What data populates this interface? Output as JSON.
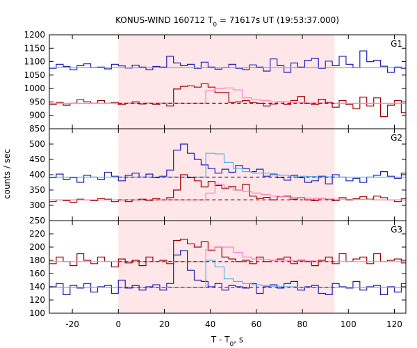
{
  "chart_data": {
    "type": "line",
    "title": {
      "main": "KONUS-WIND 160712 T",
      "sub": "0",
      "rest": " = 71617s UT (19:53:37.000)"
    },
    "xlabel": {
      "main": "T - T",
      "sub": "0",
      "rest": ", s"
    },
    "ylabel": "counts / sec",
    "xlim": [
      -30,
      125
    ],
    "xticks": [
      -20,
      0,
      20,
      40,
      60,
      80,
      100,
      120
    ],
    "shade_interval": [
      0,
      94
    ],
    "colors": {
      "blue": "#1f1fb4",
      "dark_red": "#a00000",
      "light_blue": "#5ab4e6",
      "pink": "#ff80c0",
      "shade": "#ffe6e8"
    },
    "panels": [
      {
        "label": "G1",
        "ylim": [
          850,
          1200
        ],
        "yticks": [
          850,
          900,
          950,
          1000,
          1050,
          1100,
          1150,
          1200
        ],
        "series": [
          {
            "color": "blue",
            "style": "step",
            "x_start": -30,
            "step": 3,
            "values": [
              1075,
              1090,
              1082,
              1070,
              1085,
              1092,
              1078,
              1080,
              1073,
              1090,
              1084,
              1076,
              1087,
              1080,
              1070,
              1082,
              1080,
              1120,
              1095,
              1085,
              1090,
              1075,
              1098,
              1080,
              1072,
              1078,
              1090,
              1075,
              1070,
              1088,
              1080,
              1065,
              1110,
              1085,
              1060,
              1095,
              1080,
              1105,
              1112,
              1075,
              1102,
              1085,
              1120,
              1090,
              1078,
              1140,
              1100,
              1105,
              1083,
              1060,
              1080,
              1075,
              1090,
              1088,
              1070,
              1095,
              1080,
              1090
            ]
          },
          {
            "color": "light_blue",
            "style": "step",
            "x_start": -30,
            "step": 4,
            "values": [
              1077,
              1077,
              1077,
              1077,
              1077,
              1077,
              1077,
              1077,
              1077,
              1077,
              1077,
              1077,
              1077,
              1077,
              1077,
              1077,
              1077,
              1077,
              1077,
              1077,
              1077,
              1077,
              1077,
              1077,
              1077,
              1077,
              1077,
              1077,
              1077,
              1077,
              1077,
              1077,
              1077,
              1077,
              1077,
              1077,
              1077,
              1077,
              1077
            ]
          },
          {
            "color": "dark_red",
            "style": "step",
            "x_start": -30,
            "step": 3,
            "values": [
              940,
              948,
              938,
              945,
              958,
              950,
              945,
              955,
              945,
              948,
              940,
              945,
              950,
              942,
              945,
              940,
              945,
              935,
              998,
              1008,
              1010,
              1005,
              1018,
              1005,
              985,
              985,
              948,
              950,
              955,
              948,
              945,
              935,
              942,
              950,
              940,
              955,
              970,
              945,
              940,
              960,
              948,
              930,
              955,
              940,
              925,
              968,
              935,
              965,
              895,
              938,
              955,
              910,
              940,
              960,
              920,
              938,
              948,
              940,
              925
            ]
          },
          {
            "color": "pink",
            "style": "step",
            "x_start": -30,
            "step": 4,
            "values": [
              945,
              945,
              945,
              945,
              945,
              945,
              945,
              945,
              945,
              945,
              945,
              945,
              945,
              945,
              945,
              945,
              945,
              993,
              1000,
              1002,
              995,
              965,
              958,
              955,
              950,
              950,
              948,
              948,
              946,
              946,
              945,
              945,
              945,
              945,
              945,
              945,
              945,
              945,
              945
            ]
          },
          {
            "color": "dark_red",
            "style": "dash",
            "x": [
              0,
              94
            ],
            "values": [
              945,
              945
            ]
          }
        ]
      },
      {
        "label": "G2",
        "ylim": [
          250,
          550
        ],
        "yticks": [
          250,
          300,
          350,
          400,
          450,
          500
        ],
        "series": [
          {
            "color": "blue",
            "style": "step",
            "x_start": -30,
            "step": 3,
            "values": [
              390,
              402,
              385,
              390,
              375,
              398,
              392,
              385,
              408,
              395,
              380,
              398,
              405,
              392,
              402,
              390,
              395,
              415,
              480,
              500,
              470,
              450,
              432,
              420,
              405,
              418,
              408,
              430,
              420,
              410,
              418,
              395,
              402,
              390,
              382,
              398,
              390,
              375,
              380,
              395,
              370,
              400,
              392,
              380,
              388,
              375,
              392,
              398,
              410,
              395,
              388,
              405,
              382,
              398,
              390,
              388,
              395,
              390,
              392,
              385
            ]
          },
          {
            "color": "light_blue",
            "style": "step",
            "x_start": -30,
            "step": 4,
            "values": [
              392,
              392,
              392,
              392,
              392,
              392,
              392,
              392,
              392,
              392,
              392,
              392,
              392,
              392,
              392,
              392,
              392,
              470,
              468,
              440,
              420,
              410,
              405,
              405,
              400,
              398,
              396,
              395,
              394,
              393,
              393,
              392,
              392,
              392,
              392,
              392,
              392,
              392,
              392
            ]
          },
          {
            "color": "dark_red",
            "style": "step",
            "x_start": -30,
            "step": 3,
            "values": [
              312,
              318,
              315,
              310,
              320,
              318,
              315,
              322,
              320,
              312,
              318,
              312,
              318,
              320,
              316,
              322,
              318,
              325,
              350,
              400,
              390,
              380,
              360,
              378,
              365,
              355,
              362,
              350,
              368,
              330,
              322,
              326,
              318,
              328,
              330,
              320,
              325,
              318,
              315,
              322,
              320,
              315,
              325,
              318,
              322,
              328,
              320,
              330,
              325,
              318,
              312,
              322,
              328,
              315,
              320,
              318,
              312,
              305,
              310
            ]
          },
          {
            "color": "pink",
            "style": "step",
            "x_start": -30,
            "step": 4,
            "values": [
              318,
              318,
              318,
              318,
              318,
              318,
              318,
              318,
              318,
              318,
              318,
              318,
              318,
              318,
              318,
              318,
              318,
              340,
              368,
              358,
              350,
              345,
              340,
              335,
              330,
              328,
              326,
              324,
              323,
              322,
              321,
              320,
              320,
              319,
              319,
              318,
              318,
              318,
              318
            ]
          },
          {
            "color": "blue",
            "style": "dash",
            "x": [
              0,
              94
            ],
            "values": [
              392,
              392
            ]
          },
          {
            "color": "dark_red",
            "style": "dash",
            "x": [
              0,
              94
            ],
            "values": [
              318,
              318
            ]
          }
        ]
      },
      {
        "label": "G3",
        "ylim": [
          100,
          240
        ],
        "yticks": [
          100,
          120,
          140,
          160,
          180,
          200,
          220
        ],
        "series": [
          {
            "color": "blue",
            "style": "step",
            "x_start": -30,
            "step": 3,
            "values": [
              140,
              145,
              128,
              142,
              138,
              145,
              132,
              140,
              142,
              130,
              150,
              138,
              142,
              135,
              140,
              143,
              135,
              145,
              188,
              195,
              165,
              150,
              148,
              140,
              145,
              135,
              142,
              140,
              138,
              145,
              130,
              140,
              143,
              138,
              145,
              148,
              135,
              140,
              142,
              130,
              128,
              145,
              140,
              138,
              148,
              135,
              140,
              142,
              128,
              140,
              132,
              145,
              140,
              138,
              130,
              142,
              148,
              132,
              140
            ]
          },
          {
            "color": "light_blue",
            "style": "step",
            "x_start": -30,
            "step": 4,
            "values": [
              139,
              139,
              139,
              139,
              139,
              139,
              139,
              139,
              139,
              139,
              139,
              139,
              139,
              139,
              139,
              139,
              139,
              180,
              170,
              152,
              148,
              145,
              143,
              142,
              141,
              140,
              140,
              139,
              139,
              139,
              139,
              139,
              139,
              139,
              139,
              139,
              139,
              139,
              139
            ]
          },
          {
            "color": "dark_red",
            "style": "step",
            "x_start": -30,
            "step": 3,
            "values": [
              175,
              185,
              178,
              172,
              190,
              180,
              175,
              185,
              178,
              170,
              182,
              176,
              180,
              172,
              185,
              178,
              180,
              175,
              210,
              212,
              205,
              200,
              208,
              195,
              200,
              185,
              182,
              178,
              180,
              175,
              185,
              178,
              180,
              182,
              185,
              175,
              180,
              178,
              172,
              180,
              185,
              175,
              190,
              178,
              182,
              185,
              175,
              190,
              178,
              180,
              182,
              176,
              188,
              178,
              190,
              175,
              185,
              178,
              180
            ]
          },
          {
            "color": "pink",
            "style": "step",
            "x_start": -30,
            "step": 4,
            "values": [
              178,
              178,
              178,
              178,
              178,
              178,
              178,
              178,
              178,
              178,
              178,
              178,
              178,
              178,
              178,
              178,
              178,
              196,
              200,
              200,
              192,
              185,
              182,
              181,
              180,
              180,
              179,
              179,
              179,
              178,
              178,
              178,
              178,
              178,
              178,
              178,
              178,
              178,
              178
            ]
          },
          {
            "color": "blue",
            "style": "dash",
            "x": [
              0,
              94
            ],
            "values": [
              139,
              139
            ]
          },
          {
            "color": "dark_red",
            "style": "dash",
            "x": [
              0,
              94
            ],
            "values": [
              178,
              178
            ]
          }
        ]
      }
    ]
  }
}
